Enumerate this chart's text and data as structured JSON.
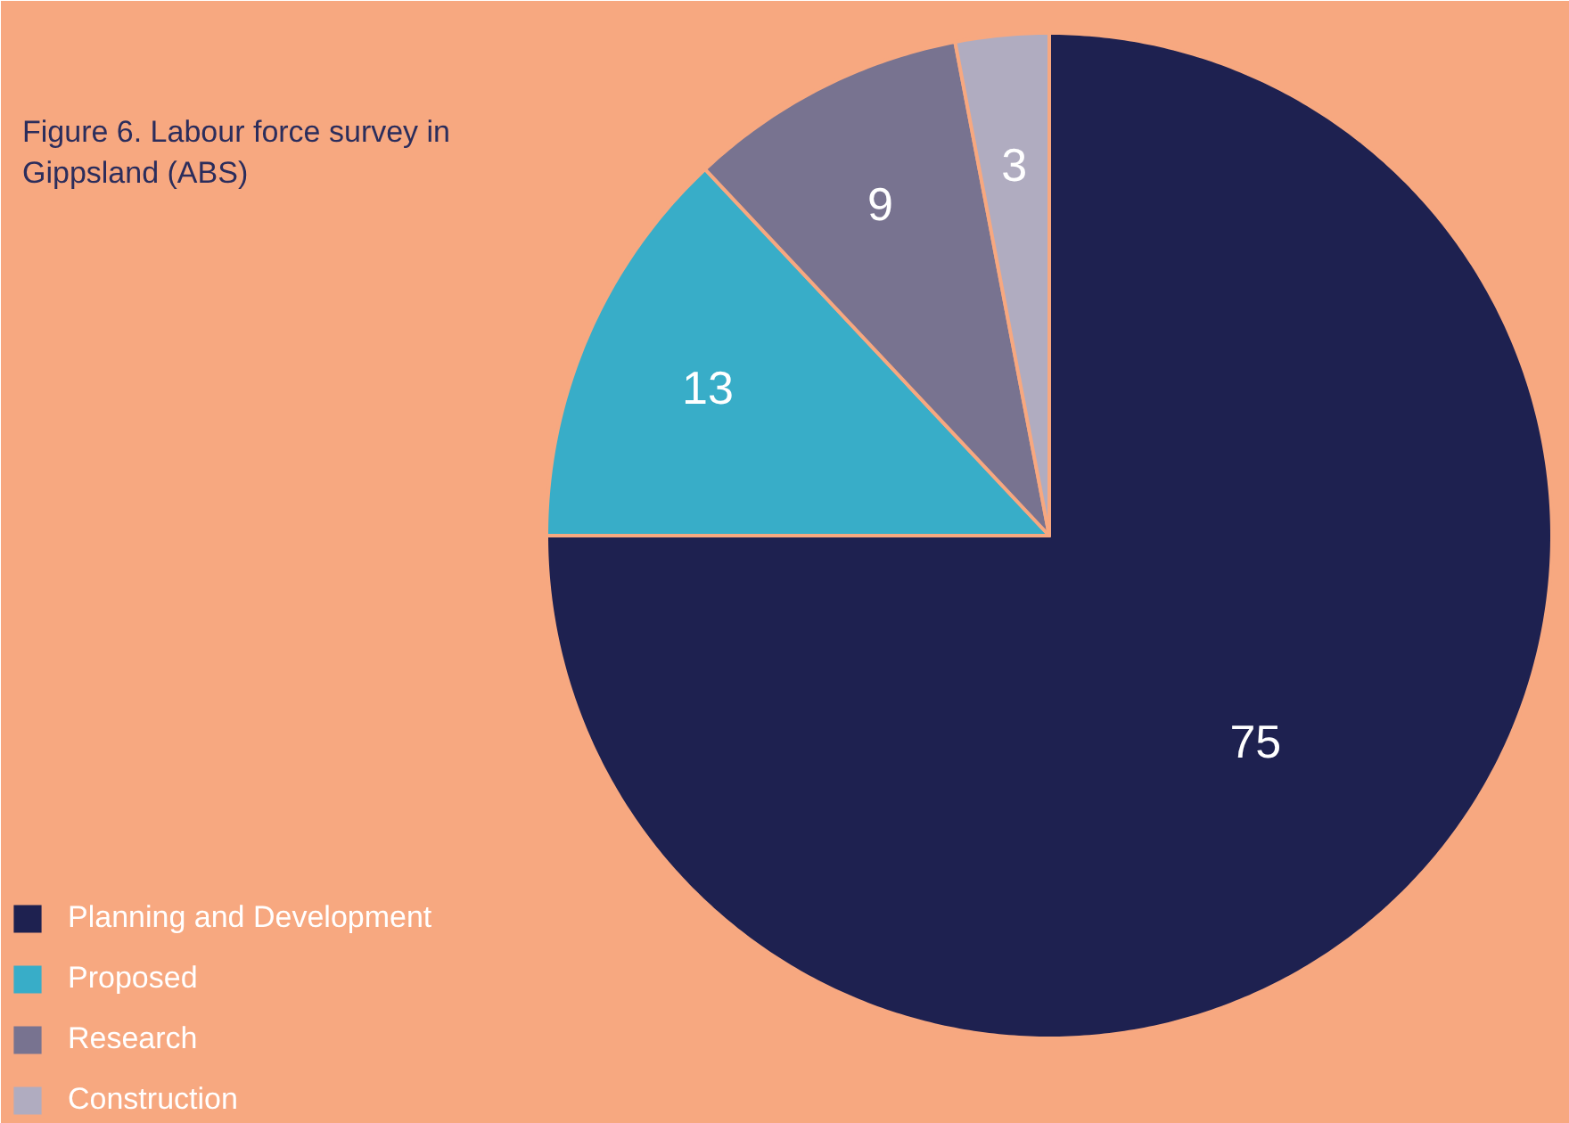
{
  "chart_data": {
    "type": "pie",
    "title": "Figure 6. Labour force survey in Gippsland (ABS)",
    "categories": [
      "Planning and Development",
      "Proposed",
      "Research",
      "Construction"
    ],
    "values": [
      75,
      13,
      9,
      3
    ],
    "colors": [
      "#1e2150",
      "#38adc8",
      "#787390",
      "#b0acc0"
    ],
    "data_labels": true,
    "legend": "bottom left"
  }
}
